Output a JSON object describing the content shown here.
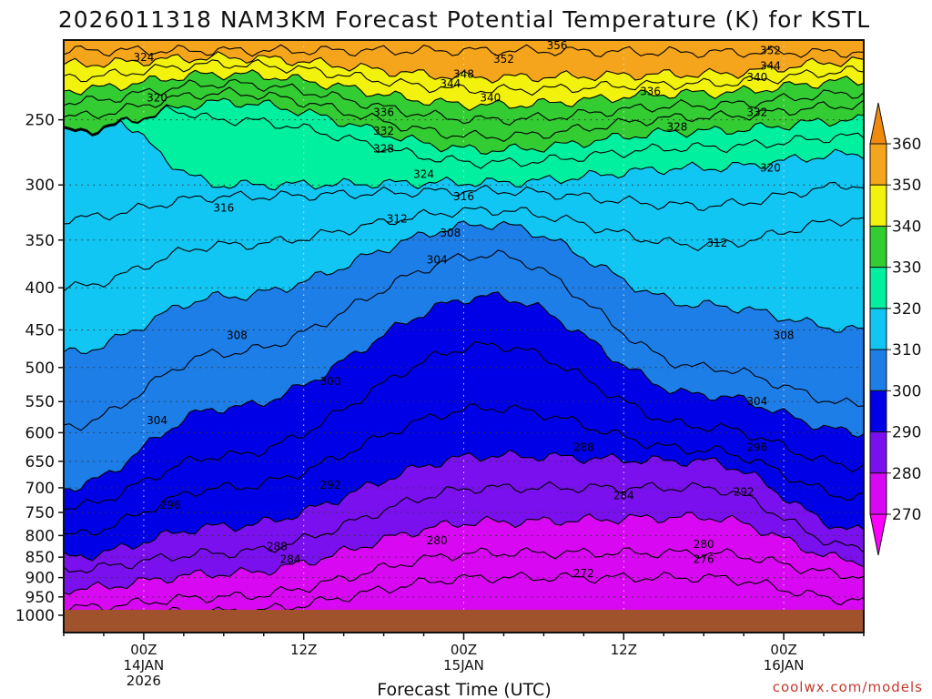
{
  "chart_data": {
    "type": "heatmap",
    "title": "2026011318 NAM3KM Forecast Potential Temperature (K) for KSTL",
    "xlabel": "Forecast Time (UTC)",
    "ylabel": "",
    "y_axis": {
      "scale": "log-pressure",
      "reversed": true,
      "range": [
        1000,
        200
      ],
      "ticks": [
        250,
        300,
        350,
        400,
        450,
        500,
        550,
        600,
        650,
        700,
        750,
        800,
        850,
        900,
        950,
        1000
      ]
    },
    "x_axis": {
      "range_hours": [
        -6,
        54
      ],
      "ticks": [
        {
          "hour": 0,
          "label": "00Z",
          "sub1": "14JAN",
          "sub2": "2026"
        },
        {
          "hour": 12,
          "label": "12Z",
          "sub1": "",
          "sub2": ""
        },
        {
          "hour": 24,
          "label": "00Z",
          "sub1": "15JAN",
          "sub2": ""
        },
        {
          "hour": 36,
          "label": "12Z",
          "sub1": "",
          "sub2": ""
        },
        {
          "hour": 48,
          "label": "00Z",
          "sub1": "16JAN",
          "sub2": ""
        }
      ]
    },
    "colorbar": {
      "labels": [
        360,
        350,
        340,
        330,
        320,
        310,
        300,
        290,
        280,
        270
      ],
      "bins": [
        {
          "min": 350,
          "max": 360,
          "color": "#f4a51c"
        },
        {
          "min": 340,
          "max": 350,
          "color": "#f2f20c"
        },
        {
          "min": 330,
          "max": 340,
          "color": "#33cc33"
        },
        {
          "min": 320,
          "max": 330,
          "color": "#00f0a0"
        },
        {
          "min": 310,
          "max": 320,
          "color": "#12c6f3"
        },
        {
          "min": 300,
          "max": 310,
          "color": "#1e7ee8"
        },
        {
          "min": 290,
          "max": 300,
          "color": "#0000e6"
        },
        {
          "min": 280,
          "max": 290,
          "color": "#7a10ee"
        },
        {
          "min": 270,
          "max": 280,
          "color": "#d808f2"
        },
        {
          "min": 260,
          "max": 270,
          "color": "#ff00ff"
        }
      ]
    },
    "isentropes": [
      {
        "theta": 352,
        "pressure": [
          206,
          206,
          206,
          207,
          207
        ]
      },
      {
        "theta": 348,
        "pressure": [
          214,
          210,
          222,
          220,
          212
        ]
      },
      {
        "theta": 344,
        "pressure": [
          222,
          214,
          230,
          226,
          218
        ]
      },
      {
        "theta": 340,
        "pressure": [
          230,
          220,
          240,
          232,
          224
        ]
      },
      {
        "theta": 336,
        "pressure": [
          238,
          226,
          250,
          240,
          232
        ]
      },
      {
        "theta": 332,
        "pressure": [
          248,
          232,
          262,
          248,
          240
        ]
      },
      {
        "theta": 328,
        "pressure": [
          258,
          238,
          272,
          258,
          250
        ]
      },
      {
        "theta": 324,
        "pressure": [
          215,
          250,
          282,
          270,
          262
        ]
      },
      {
        "theta": 320,
        "pressure": [
          232,
          300,
          298,
          286,
          275
        ]
      },
      {
        "theta": 316,
        "pressure": [
          330,
          310,
          305,
          318,
          300
        ]
      },
      {
        "theta": 312,
        "pressure": [
          400,
          355,
          322,
          355,
          330
        ]
      },
      {
        "theta": 308,
        "pressure": [
          480,
          410,
          335,
          420,
          450
        ]
      },
      {
        "theta": 304,
        "pressure": [
          590,
          480,
          365,
          500,
          555
        ]
      },
      {
        "theta": 300,
        "pressure": [
          700,
          560,
          410,
          540,
          600
        ]
      },
      {
        "theta": 296,
        "pressure": [
          740,
          640,
          470,
          590,
          660
        ]
      },
      {
        "theta": 292,
        "pressure": [
          800,
          700,
          560,
          630,
          720
        ]
      },
      {
        "theta": 288,
        "pressure": [
          850,
          780,
          640,
          650,
          790
        ]
      },
      {
        "theta": 284,
        "pressure": [
          880,
          840,
          700,
          700,
          830
        ]
      },
      {
        "theta": 280,
        "pressure": [
          930,
          890,
          770,
          760,
          860
        ]
      },
      {
        "theta": 276,
        "pressure": [
          980,
          950,
          840,
          840,
          895
        ]
      },
      {
        "theta": 272,
        "pressure": [
          1000,
          990,
          900,
          900,
          960
        ]
      }
    ],
    "contour_labels": [
      {
        "text": "356",
        "hour": 31,
        "pressure": 203
      },
      {
        "text": "352",
        "hour": 27,
        "pressure": 211
      },
      {
        "text": "352",
        "hour": 47,
        "pressure": 206
      },
      {
        "text": "348",
        "hour": 24,
        "pressure": 220
      },
      {
        "text": "344",
        "hour": 23,
        "pressure": 226
      },
      {
        "text": "344",
        "hour": 47,
        "pressure": 215
      },
      {
        "text": "340",
        "hour": 26,
        "pressure": 235
      },
      {
        "text": "340",
        "hour": 46,
        "pressure": 222
      },
      {
        "text": "336",
        "hour": 18,
        "pressure": 245
      },
      {
        "text": "336",
        "hour": 38,
        "pressure": 231
      },
      {
        "text": "332",
        "hour": 18,
        "pressure": 258
      },
      {
        "text": "332",
        "hour": 46,
        "pressure": 245
      },
      {
        "text": "328",
        "hour": 18,
        "pressure": 271
      },
      {
        "text": "328",
        "hour": 40,
        "pressure": 255
      },
      {
        "text": "324",
        "hour": 0,
        "pressure": 210
      },
      {
        "text": "324",
        "hour": 21,
        "pressure": 291
      },
      {
        "text": "320",
        "hour": 1,
        "pressure": 235
      },
      {
        "text": "320",
        "hour": 47,
        "pressure": 286
      },
      {
        "text": "316",
        "hour": 6,
        "pressure": 320
      },
      {
        "text": "316",
        "hour": 24,
        "pressure": 310
      },
      {
        "text": "312",
        "hour": 19,
        "pressure": 330
      },
      {
        "text": "312",
        "hour": 43,
        "pressure": 353
      },
      {
        "text": "308",
        "hour": 23,
        "pressure": 343
      },
      {
        "text": "308",
        "hour": 7,
        "pressure": 457
      },
      {
        "text": "308",
        "hour": 48,
        "pressure": 457
      },
      {
        "text": "304",
        "hour": 22,
        "pressure": 370
      },
      {
        "text": "304",
        "hour": 1,
        "pressure": 580
      },
      {
        "text": "304",
        "hour": 46,
        "pressure": 550
      },
      {
        "text": "300",
        "hour": 14,
        "pressure": 520
      },
      {
        "text": "296",
        "hour": 2,
        "pressure": 735
      },
      {
        "text": "296",
        "hour": 46,
        "pressure": 625
      },
      {
        "text": "292",
        "hour": 14,
        "pressure": 695
      },
      {
        "text": "292",
        "hour": 45,
        "pressure": 708
      },
      {
        "text": "288",
        "hour": 33,
        "pressure": 625
      },
      {
        "text": "288",
        "hour": 10,
        "pressure": 825
      },
      {
        "text": "284",
        "hour": 36,
        "pressure": 715
      },
      {
        "text": "284",
        "hour": 11,
        "pressure": 855
      },
      {
        "text": "280",
        "hour": 22,
        "pressure": 812
      },
      {
        "text": "280",
        "hour": 42,
        "pressure": 820
      },
      {
        "text": "276",
        "hour": 42,
        "pressure": 855
      },
      {
        "text": "272",
        "hour": 33,
        "pressure": 890
      }
    ]
  },
  "credit": "coolwx.com/models"
}
